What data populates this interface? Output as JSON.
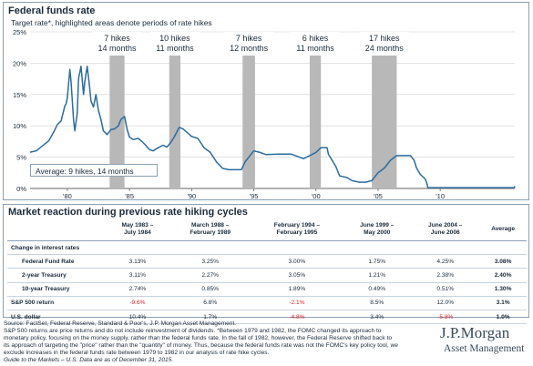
{
  "chart_panel": {
    "title": "Federal funds rate",
    "subtitle": "Target rate*, highlighted areas denote periods of rate hikes",
    "average_note": "Average: 9 hikes, 14 months"
  },
  "chart_data": {
    "type": "line",
    "title": "Federal funds rate",
    "xlim": [
      1977,
      2016
    ],
    "ylim": [
      0,
      25
    ],
    "y_ticks": [
      "0%",
      "5%",
      "10%",
      "15%",
      "20%",
      "25%"
    ],
    "y_tick_values": [
      0,
      5,
      10,
      15,
      20,
      25
    ],
    "x_ticks": [
      "'80",
      "'85",
      "'90",
      "'95",
      "'00",
      "'05",
      "'10"
    ],
    "x_tick_values": [
      1980,
      1985,
      1990,
      1995,
      2000,
      2005,
      2010
    ],
    "grid": "horizontal",
    "hike_periods": [
      {
        "start": 1983.4,
        "end": 1984.6,
        "label1": "7 hikes",
        "label2": "14 months"
      },
      {
        "start": 1988.2,
        "end": 1989.1,
        "label1": "10 hikes",
        "label2": "11 months"
      },
      {
        "start": 1994.1,
        "end": 1995.1,
        "label1": "7 hikes",
        "label2": "12 months"
      },
      {
        "start": 1999.5,
        "end": 2000.4,
        "label1": "6 hikes",
        "label2": "11 months"
      },
      {
        "start": 2004.5,
        "end": 2006.5,
        "label1": "17 hikes",
        "label2": "24 months"
      }
    ],
    "series": [
      {
        "x": [
          1977.0,
          1977.5,
          1978.0,
          1978.5,
          1978.9,
          1979.2,
          1979.5,
          1979.8,
          1979.9,
          1980.0,
          1980.2,
          1980.3,
          1980.5,
          1980.6,
          1980.8,
          1980.9,
          1981.1,
          1981.3,
          1981.4,
          1981.6,
          1981.8,
          1981.9,
          1982.1,
          1982.3,
          1982.5,
          1982.7,
          1982.9,
          1983.2,
          1983.5,
          1983.8,
          1984.1,
          1984.3,
          1984.6,
          1984.8,
          1985.0,
          1985.3,
          1985.7,
          1986.0,
          1986.3,
          1986.6,
          1986.9,
          1987.3,
          1987.7,
          1988.0,
          1988.3,
          1988.6,
          1989.0,
          1989.3,
          1989.6,
          1990.0,
          1990.5,
          1991.0,
          1991.5,
          1992.0,
          1992.5,
          1993.0,
          1994.0,
          1994.3,
          1994.6,
          1995.0,
          1995.5,
          1996.0,
          1997.0,
          1998.0,
          1998.8,
          1999.0,
          1999.5,
          2000.0,
          2000.4,
          2000.9,
          2001.0,
          2001.3,
          2001.6,
          2001.9,
          2002.5,
          2002.9,
          2003.5,
          2004.0,
          2004.5,
          2005.0,
          2005.5,
          2006.0,
          2006.5,
          2007.0,
          2007.6,
          2007.9,
          2008.1,
          2008.4,
          2008.8,
          2008.95,
          2009.0,
          2012.0,
          2015.0,
          2015.96,
          2016.0
        ],
        "y": [
          5.8,
          6.0,
          6.8,
          7.6,
          9.0,
          10.2,
          10.8,
          13.2,
          13.5,
          14.5,
          19.0,
          17.0,
          11.0,
          9.2,
          12.0,
          17.5,
          19.5,
          15.0,
          17.0,
          19.5,
          16.0,
          14.0,
          13.0,
          15.0,
          12.5,
          11.0,
          9.2,
          8.6,
          9.4,
          9.5,
          10.0,
          11.0,
          11.5,
          9.5,
          8.2,
          7.8,
          8.0,
          7.5,
          6.9,
          6.2,
          6.0,
          6.5,
          6.9,
          6.6,
          7.3,
          8.2,
          9.75,
          9.5,
          9.0,
          8.3,
          8.0,
          6.5,
          5.75,
          4.25,
          3.2,
          3.0,
          3.0,
          4.25,
          5.0,
          6.0,
          5.75,
          5.4,
          5.5,
          5.5,
          4.9,
          4.75,
          5.25,
          5.75,
          6.5,
          6.5,
          5.5,
          4.5,
          3.5,
          2.0,
          1.75,
          1.25,
          1.0,
          1.0,
          1.25,
          2.5,
          3.25,
          4.5,
          5.25,
          5.25,
          5.25,
          4.5,
          3.25,
          2.25,
          1.5,
          0.7,
          0.125,
          0.125,
          0.125,
          0.125,
          0.375
        ]
      }
    ]
  },
  "table": {
    "title": "Market reaction during previous rate hiking cycles",
    "columns": [
      {
        "line1": "May 1983 –",
        "line2": "July 1984"
      },
      {
        "line1": "March 1988 –",
        "line2": "February 1989"
      },
      {
        "line1": "February 1994 –",
        "line2": "February 1995"
      },
      {
        "line1": "June 1999 –",
        "line2": "May 2000"
      },
      {
        "line1": "June 2004 –",
        "line2": "June 2006"
      },
      {
        "line1": "Average",
        "line2": ""
      }
    ],
    "section_label": "Change in interest rates",
    "rows": [
      {
        "label": "Federal Fund Rate",
        "values": [
          "3.13%",
          "3.25%",
          "3.00%",
          "1.75%",
          "4.25%",
          "3.08%"
        ]
      },
      {
        "label": "2-year Treasury",
        "values": [
          "3.11%",
          "2.27%",
          "3.05%",
          "1.21%",
          "2.38%",
          "2.40%"
        ]
      },
      {
        "label": "10-year Treasury",
        "values": [
          "2.74%",
          "0.85%",
          "1.89%",
          "0.49%",
          "0.51%",
          "1.30%"
        ]
      }
    ],
    "market_rows": [
      {
        "label": "S&P 500 return",
        "values": [
          "-9.6%",
          "6.8%",
          "-2.1%",
          "8.5%",
          "12.0%",
          "3.1%"
        ]
      },
      {
        "label": "U.S. dollar",
        "values": [
          "10.4%",
          "1.7%",
          "-4.8%",
          "3.4%",
          "-5.8%",
          "1.0%"
        ]
      }
    ],
    "negative_color": "#d8232a"
  },
  "footer": {
    "source": "Source: FactSet, Federal Reserve, Standard & Poor's, J.P. Morgan Asset Management.",
    "note1": "S&P 500 returns are price returns and do not include reinvestment of dividends. *Between 1979 and 1982, the FOMC changed its approach to",
    "note2": "monetary policy, focusing on the money supply, rather than the federal funds rate. In the fall of 1982, however, the Federal Reserve shifted back to",
    "note3": "its approach of targeting the \"price\" rather than the \"quantity\" of money. Thus, because the federal funds rate was not the FOMC's key policy tool, we",
    "note4": "exclude increases in the federal funds rate between 1979 to 1982 in our analysis of rate hike cycles.",
    "guide": "Guide to the Markets – U.S. Data are as of December 31, 2015."
  },
  "logo": {
    "line1": "J.P.Morgan",
    "line2": "Asset Management"
  },
  "colors": {
    "line": "#2b6c9e",
    "shade": "#b8b8b8",
    "border": "#8aa0b4"
  }
}
